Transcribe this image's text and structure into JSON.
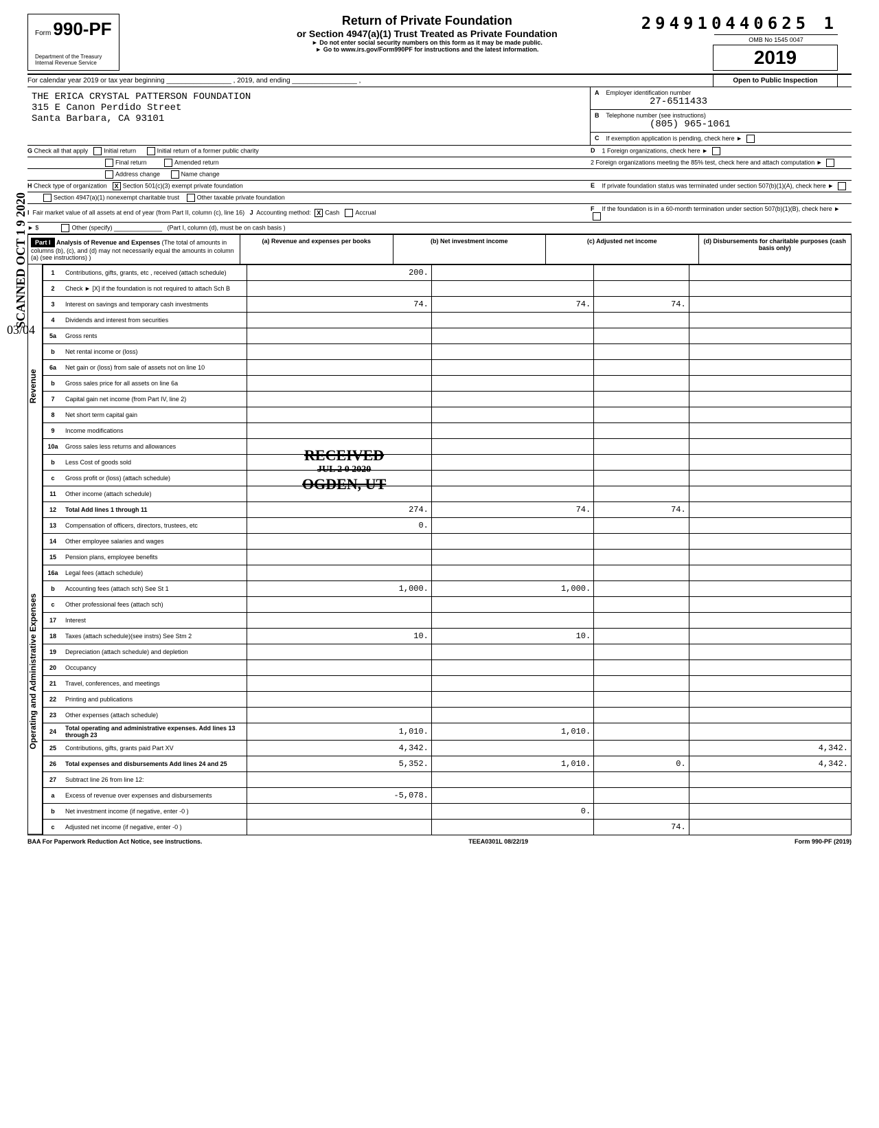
{
  "doc_id": "294910440625 1",
  "omb": "OMB No 1545 0047",
  "year": "2019",
  "open": "Open to Public Inspection",
  "form_prefix": "Form",
  "form_no": "990-PF",
  "title1": "Return of Private Foundation",
  "title2": "or Section 4947(a)(1) Trust Treated as Private Foundation",
  "sub1": "► Do not enter social security numbers on this form as it may be made public.",
  "sub2": "► Go to www.irs.gov/Form990PF for instructions and the latest information.",
  "dept": "Department of the Treasury\nInternal Revenue Service",
  "calendar": "For calendar year 2019 or tax year beginning _________________ , 2019, and ending _________________ ,",
  "name": "THE ERICA CRYSTAL PATTERSON FOUNDATION",
  "addr1": "315 E Canon Perdido Street",
  "addr2": "Santa Barbara, CA 93101",
  "boxA_label": "Employer identification number",
  "boxA_val": "27-6511433",
  "boxB_label": "Telephone number (see instructions)",
  "boxB_val": "(805) 965-1061",
  "boxC": "If exemption application is pending, check here",
  "boxD1": "1 Foreign organizations, check here",
  "boxD2": "2 Foreign organizations meeting the 85% test, check here and attach computation",
  "boxE": "If private foundation status was terminated under section 507(b)(1)(A), check here",
  "boxF": "If the foundation is in a 60-month termination under section 507(b)(1)(B), check here",
  "G_label": "Check all that apply",
  "G_opts": [
    "Initial return",
    "Final return",
    "Address change",
    "Initial return of a former public charity",
    "Amended return",
    "Name change"
  ],
  "H_label": "Check type of organization",
  "H_opt_x": "Section 501(c)(3) exempt private foundation",
  "H_opt2": "Section 4947(a)(1) nonexempt charitable trust",
  "H_opt3": "Other taxable private foundation",
  "I_label": "Fair market value of all assets at end of year (from Part II, column (c), line 16)",
  "I_val": "► $",
  "J_label": "Accounting method:",
  "J_cash": "Cash",
  "J_accrual": "Accrual",
  "J_other": "Other (specify)",
  "J_note": "(Part I, column (d), must be on cash basis )",
  "part1_hdr": "Part I",
  "part1_title": "Analysis of Revenue and Expenses",
  "part1_note": "(The total of amounts in columns (b), (c), and (d) may not necessarily equal the amounts in column (a) (see instructions) )",
  "col_a": "(a) Revenue and expenses per books",
  "col_b": "(b) Net investment income",
  "col_c": "(c) Adjusted net income",
  "col_d": "(d) Disbursements for charitable purposes (cash basis only)",
  "rows": [
    {
      "n": "1",
      "l": "Contributions, gifts, grants, etc , received (attach schedule)",
      "a": "200.",
      "b": "",
      "c": "",
      "d": ""
    },
    {
      "n": "2",
      "l": "Check ► [X] if the foundation is not required to attach Sch B",
      "a": "",
      "b": "",
      "c": "",
      "d": ""
    },
    {
      "n": "3",
      "l": "Interest on savings and temporary cash investments",
      "a": "74.",
      "b": "74.",
      "c": "74.",
      "d": ""
    },
    {
      "n": "4",
      "l": "Dividends and interest from securities",
      "a": "",
      "b": "",
      "c": "",
      "d": ""
    },
    {
      "n": "5a",
      "l": "Gross rents",
      "a": "",
      "b": "",
      "c": "",
      "d": ""
    },
    {
      "n": "b",
      "l": "Net rental income or (loss)",
      "a": "",
      "b": "",
      "c": "",
      "d": ""
    },
    {
      "n": "6a",
      "l": "Net gain or (loss) from sale of assets not on line 10",
      "a": "",
      "b": "",
      "c": "",
      "d": ""
    },
    {
      "n": "b",
      "l": "Gross sales price for all assets on line 6a",
      "a": "",
      "b": "",
      "c": "",
      "d": ""
    },
    {
      "n": "7",
      "l": "Capital gain net income (from Part IV, line 2)",
      "a": "",
      "b": "",
      "c": "",
      "d": ""
    },
    {
      "n": "8",
      "l": "Net short term capital gain",
      "a": "",
      "b": "",
      "c": "",
      "d": ""
    },
    {
      "n": "9",
      "l": "Income modifications",
      "a": "",
      "b": "",
      "c": "",
      "d": ""
    },
    {
      "n": "10a",
      "l": "Gross sales less returns and allowances",
      "a": "",
      "b": "",
      "c": "",
      "d": ""
    },
    {
      "n": "b",
      "l": "Less Cost of goods sold",
      "a": "",
      "b": "",
      "c": "",
      "d": ""
    },
    {
      "n": "c",
      "l": "Gross profit or (loss) (attach schedule)",
      "a": "",
      "b": "",
      "c": "",
      "d": ""
    },
    {
      "n": "11",
      "l": "Other income (attach schedule)",
      "a": "",
      "b": "",
      "c": "",
      "d": ""
    },
    {
      "n": "12",
      "l": "Total Add lines 1 through 11",
      "a": "274.",
      "b": "74.",
      "c": "74.",
      "d": "",
      "bold": true
    },
    {
      "n": "13",
      "l": "Compensation of officers, directors, trustees, etc",
      "a": "0.",
      "b": "",
      "c": "",
      "d": ""
    },
    {
      "n": "14",
      "l": "Other employee salaries and wages",
      "a": "",
      "b": "",
      "c": "",
      "d": ""
    },
    {
      "n": "15",
      "l": "Pension plans, employee benefits",
      "a": "",
      "b": "",
      "c": "",
      "d": ""
    },
    {
      "n": "16a",
      "l": "Legal fees (attach schedule)",
      "a": "",
      "b": "",
      "c": "",
      "d": ""
    },
    {
      "n": "b",
      "l": "Accounting fees (attach sch)      See St 1",
      "a": "1,000.",
      "b": "1,000.",
      "c": "",
      "d": ""
    },
    {
      "n": "c",
      "l": "Other professional fees (attach sch)",
      "a": "",
      "b": "",
      "c": "",
      "d": ""
    },
    {
      "n": "17",
      "l": "Interest",
      "a": "",
      "b": "",
      "c": "",
      "d": ""
    },
    {
      "n": "18",
      "l": "Taxes (attach schedule)(see instrs)   See Stm 2",
      "a": "10.",
      "b": "10.",
      "c": "",
      "d": ""
    },
    {
      "n": "19",
      "l": "Depreciation (attach schedule) and depletion",
      "a": "",
      "b": "",
      "c": "",
      "d": ""
    },
    {
      "n": "20",
      "l": "Occupancy",
      "a": "",
      "b": "",
      "c": "",
      "d": ""
    },
    {
      "n": "21",
      "l": "Travel, conferences, and meetings",
      "a": "",
      "b": "",
      "c": "",
      "d": ""
    },
    {
      "n": "22",
      "l": "Printing and publications",
      "a": "",
      "b": "",
      "c": "",
      "d": ""
    },
    {
      "n": "23",
      "l": "Other expenses (attach schedule)",
      "a": "",
      "b": "",
      "c": "",
      "d": ""
    },
    {
      "n": "24",
      "l": "Total operating and administrative expenses. Add lines 13 through 23",
      "a": "1,010.",
      "b": "1,010.",
      "c": "",
      "d": "",
      "bold": true
    },
    {
      "n": "25",
      "l": "Contributions, gifts, grants paid       Part XV",
      "a": "4,342.",
      "b": "",
      "c": "",
      "d": "4,342."
    },
    {
      "n": "26",
      "l": "Total expenses and disbursements Add lines 24 and 25",
      "a": "5,352.",
      "b": "1,010.",
      "c": "0.",
      "d": "4,342.",
      "bold": true
    },
    {
      "n": "27",
      "l": "Subtract line 26 from line 12:",
      "a": "",
      "b": "",
      "c": "",
      "d": ""
    },
    {
      "n": "a",
      "l": "Excess of revenue over expenses and disbursements",
      "a": "-5,078.",
      "b": "",
      "c": "",
      "d": ""
    },
    {
      "n": "b",
      "l": "Net investment income (if negative, enter -0 )",
      "a": "",
      "b": "0.",
      "c": "",
      "d": ""
    },
    {
      "n": "c",
      "l": "Adjusted net income (if negative, enter -0 )",
      "a": "",
      "b": "",
      "c": "74.",
      "d": ""
    }
  ],
  "side_rev": "Revenue",
  "side_exp": "Operating and Administrative Expenses",
  "stamp_l1": "RECEIVED",
  "stamp_l2": "JUL 2 0 2020",
  "stamp_l3": "OGDEN, UT",
  "scanned": "SCANNED OCT 1 9 2020",
  "datefrac": "03/04",
  "footer_l": "BAA  For Paperwork Reduction Act Notice, see instructions.",
  "footer_c": "TEEA0301L  08/22/19",
  "footer_r": "Form 990-PF (2019)",
  "colors": {
    "bg": "#ffffff",
    "text": "#000000",
    "shade": "#cccccc",
    "part_bg": "#000000",
    "part_fg": "#ffffff"
  }
}
